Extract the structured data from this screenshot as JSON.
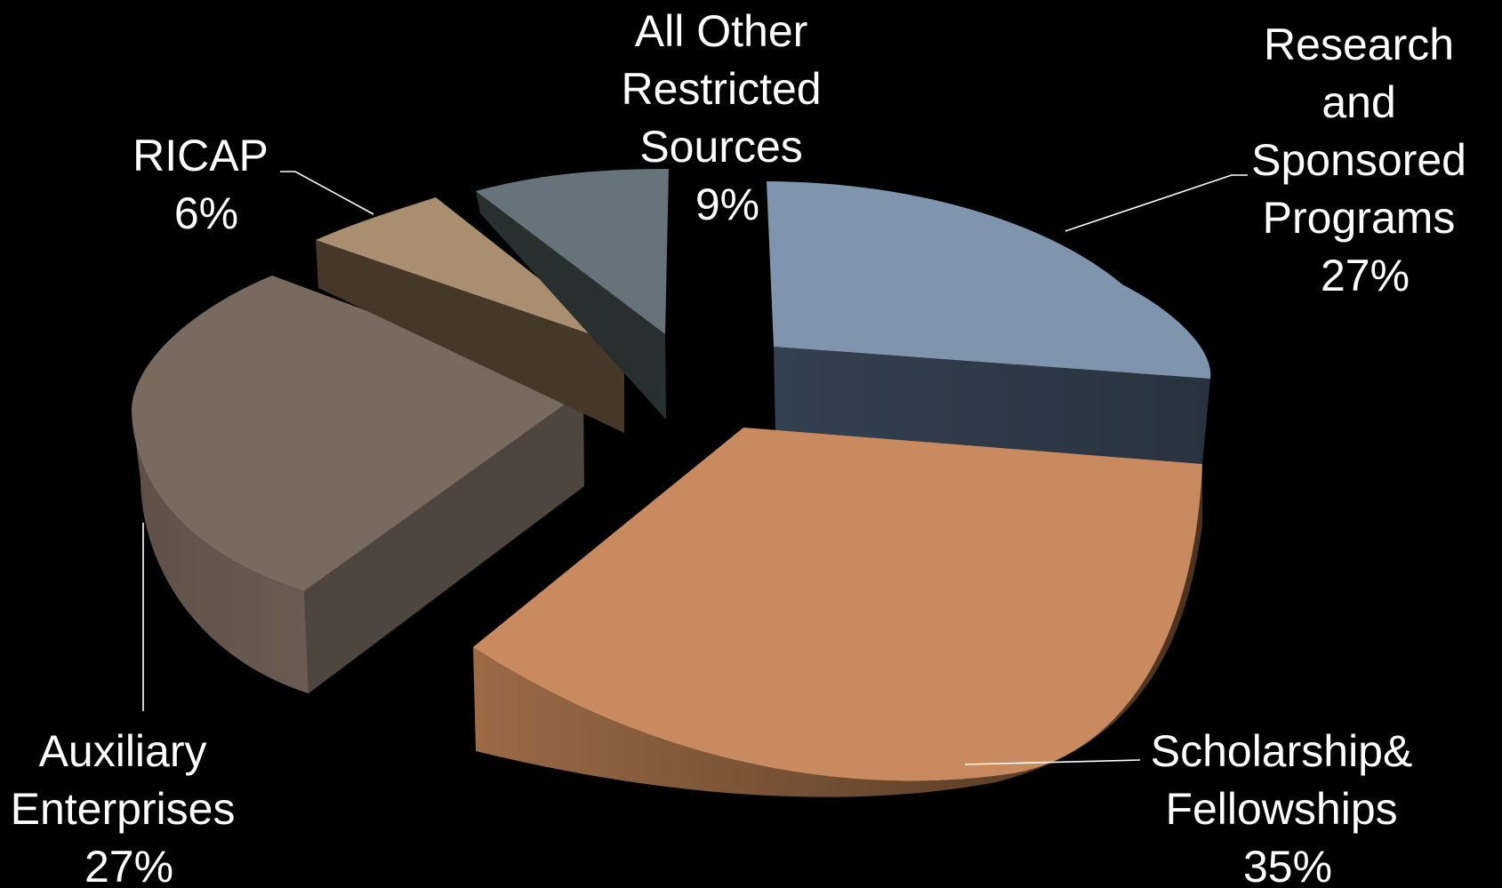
{
  "chart_data": {
    "type": "pie",
    "style": "3d-exploded",
    "title": "",
    "slices": [
      {
        "lines": [
          "Research",
          "and",
          "Sponsored",
          "Programs"
        ],
        "percent_label": "27%",
        "value": 27,
        "color": "#7f95ad"
      },
      {
        "lines": [
          "Scholarship&",
          "Fellowships"
        ],
        "percent_label": "35%",
        "value": 35,
        "color": "#c98a5f"
      },
      {
        "lines": [
          "Auxiliary",
          "Enterprises"
        ],
        "percent_label": "27%",
        "value": 27,
        "color": "#786a5f"
      },
      {
        "lines": [
          "RICAP"
        ],
        "percent_label": "6%",
        "value": 6,
        "color": "#a98f6f"
      },
      {
        "lines": [
          "All Other",
          "Restricted",
          "Sources"
        ],
        "percent_label": "9%",
        "value": 9,
        "color": "#66737a"
      }
    ],
    "legend": "none",
    "data_labels": "outside"
  }
}
